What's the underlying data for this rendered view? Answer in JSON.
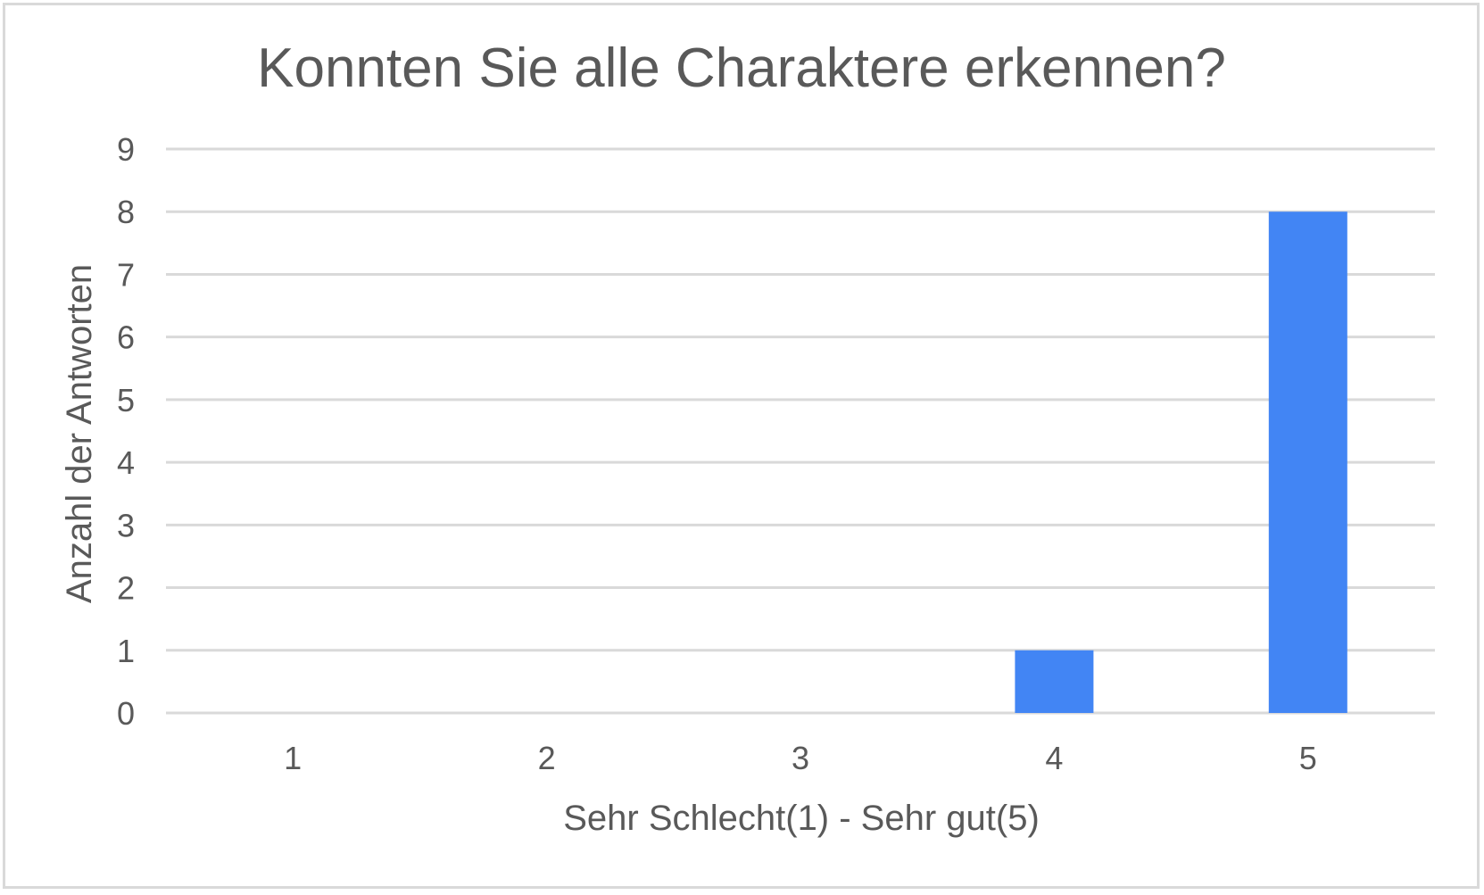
{
  "chart_data": {
    "type": "bar",
    "title": "Konnten Sie alle Charaktere erkennen?",
    "xlabel": "Sehr Schlecht(1) - Sehr gut(5)",
    "ylabel": "Anzahl der Antworten",
    "categories": [
      "1",
      "2",
      "3",
      "4",
      "5"
    ],
    "values": [
      0,
      0,
      0,
      1,
      8
    ],
    "ylim": [
      0,
      9
    ],
    "yticks": [
      "0",
      "1",
      "2",
      "3",
      "4",
      "5",
      "6",
      "7",
      "8",
      "9"
    ],
    "grid": true,
    "legend": "none",
    "bar_color": "#4285f4",
    "grid_color": "#d9d9d9",
    "text_color": "#595959"
  }
}
